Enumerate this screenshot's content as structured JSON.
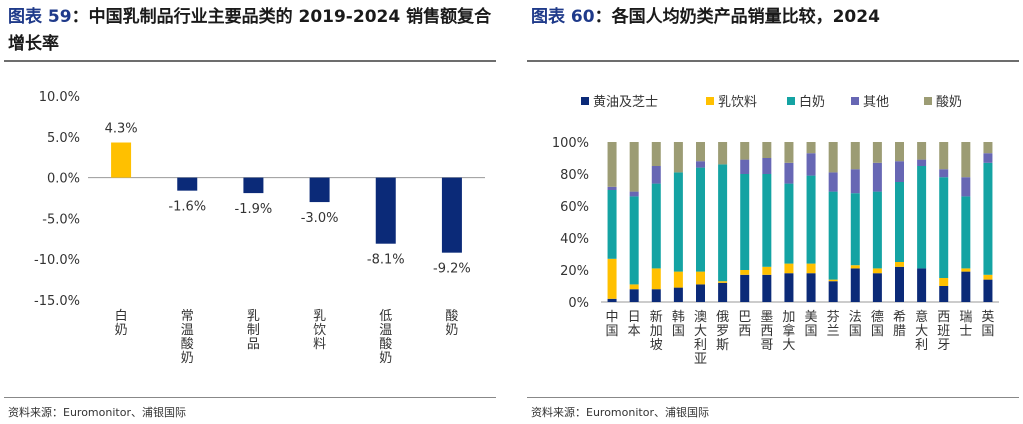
{
  "panels": [
    {
      "fig_label": "图表 59",
      "title": "：中国乳制品行业主要品类的 2019-2024 销售额复合增长率",
      "source": "资料来源：Euromonitor、浦银国际"
    },
    {
      "fig_label": "图表 60",
      "title": "：各国人均奶类产品销量比较，2024",
      "source": "资料来源：Euromonitor、浦银国际"
    }
  ],
  "colors": {
    "title_fig": "#1f3a8a",
    "bar_main": "#0b2a78",
    "bar_highlight": "#ffc000",
    "stack": [
      "#0b2a78",
      "#ffc000",
      "#14a3a3",
      "#6767b4",
      "#9c9c74"
    ]
  },
  "chart_data": [
    {
      "type": "bar",
      "categories": [
        "白奶",
        "常温酸奶",
        "乳制品",
        "乳饮料",
        "低温酸奶",
        "酸奶"
      ],
      "values": [
        4.3,
        -1.6,
        -1.9,
        -3.0,
        -8.1,
        -9.2
      ],
      "data_labels": [
        "4.3%",
        "-1.6%",
        "-1.9%",
        "-3.0%",
        "-8.1%",
        "-9.2%"
      ],
      "highlight_index": 0,
      "ylim": [
        -15,
        10
      ],
      "yticks": [
        10,
        5,
        0,
        -5,
        -10,
        -15
      ],
      "ytick_labels": [
        "10.0%",
        "5.0%",
        "0.0%",
        "-5.0%",
        "-10.0%",
        "-15.0%"
      ],
      "grid": false
    },
    {
      "type": "bar",
      "stacked": true,
      "percent": true,
      "legend_position": "top",
      "categories": [
        "中国",
        "日本",
        "新加坡",
        "韩国",
        "澳大利亚",
        "俄罗斯",
        "巴西",
        "墨西哥",
        "加拿大",
        "美国",
        "芬兰",
        "法国",
        "德国",
        "希腊",
        "意大利",
        "西班牙",
        "瑞士",
        "英国"
      ],
      "series": [
        {
          "name": "黄油及芝士",
          "values": [
            2,
            8,
            8,
            9,
            11,
            12,
            17,
            17,
            18,
            18,
            13,
            21,
            18,
            22,
            21,
            10,
            19,
            14
          ]
        },
        {
          "name": "乳饮料",
          "values": [
            25,
            3,
            13,
            10,
            8,
            1,
            3,
            5,
            6,
            6,
            1,
            2,
            3,
            3,
            0,
            5,
            2,
            3
          ]
        },
        {
          "name": "白奶",
          "values": [
            43,
            55,
            53,
            62,
            65,
            73,
            60,
            58,
            50,
            55,
            55,
            45,
            48,
            50,
            64,
            63,
            45,
            70
          ]
        },
        {
          "name": "其他",
          "values": [
            2,
            3,
            11,
            0,
            4,
            0,
            9,
            10,
            13,
            14,
            12,
            15,
            18,
            13,
            4,
            5,
            12,
            6
          ]
        },
        {
          "name": "酸奶",
          "values": [
            28,
            31,
            15,
            19,
            12,
            14,
            11,
            10,
            13,
            7,
            19,
            17,
            13,
            12,
            11,
            17,
            22,
            7
          ]
        }
      ],
      "ylim": [
        0,
        100
      ],
      "yticks": [
        0,
        20,
        40,
        60,
        80,
        100
      ],
      "ytick_labels": [
        "0%",
        "20%",
        "40%",
        "60%",
        "80%",
        "100%"
      ],
      "grid": false
    }
  ]
}
